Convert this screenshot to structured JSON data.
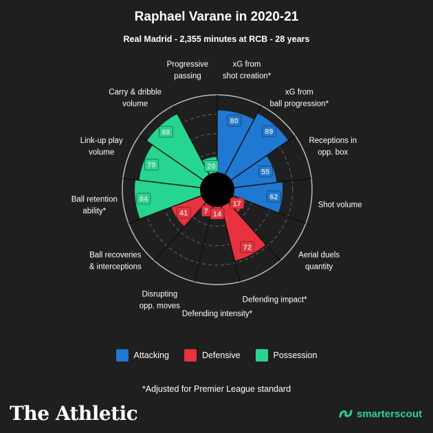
{
  "header": {
    "title": "Raphael Varane in 2020-21",
    "subtitle": "Real Madrid - 2,355 minutes at RCB - 28 years"
  },
  "colors": {
    "background": "#1f1f1f",
    "Attacking": "#1f78d1",
    "Defensive": "#e8323f",
    "Possession": "#26d690",
    "hole": "#000000",
    "grid": "#6a6a6a"
  },
  "chart_data": {
    "type": "polar_bar",
    "direction": "clockwise from top",
    "rlim": [
      0,
      100
    ],
    "grid": true,
    "legend_placement": "bottom",
    "categories": [
      {
        "label": "xG from\nshot creation*",
        "group": "Attacking",
        "value": 80
      },
      {
        "label": "xG from\nball progression*",
        "group": "Attacking",
        "value": 89
      },
      {
        "label": "Receptions in\nopp. box",
        "group": "Attacking",
        "value": 55
      },
      {
        "label": "Shot volume",
        "group": "Attacking",
        "value": 62
      },
      {
        "label": "Aerial duels\nquantity",
        "group": "Defensive",
        "value": 17
      },
      {
        "label": "Defending impact*",
        "group": "Defensive",
        "value": 72
      },
      {
        "label": "Defending intensity*",
        "group": "Defensive",
        "value": 14
      },
      {
        "label": "Disrupting\nopp. moves",
        "group": "Defensive",
        "value": 7
      },
      {
        "label": "Ball recoveries\n& interceptions",
        "group": "Defensive",
        "value": 41
      },
      {
        "label": "Ball retention\nability*",
        "group": "Possession",
        "value": 84
      },
      {
        "label": "Link-up play\nvolume",
        "group": "Possession",
        "value": 79
      },
      {
        "label": "Carry & dribble\nvolume",
        "group": "Possession",
        "value": 88
      },
      {
        "label": "Progressive\npassing",
        "group": "Possession",
        "value": 20
      }
    ]
  },
  "legend": [
    {
      "label": "Attacking",
      "color": "#1f78d1"
    },
    {
      "label": "Defensive",
      "color": "#e8323f"
    },
    {
      "label": "Possession",
      "color": "#26d690"
    }
  ],
  "footnote": "*Adjusted for Premier League standard",
  "branding": {
    "left": "The Athletic",
    "right": "smarterscout"
  }
}
